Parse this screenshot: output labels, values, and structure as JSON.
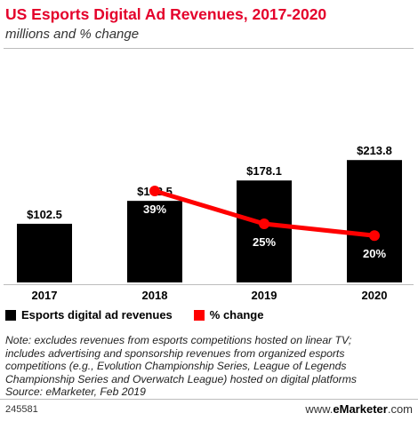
{
  "header": {
    "title": "US Esports Digital Ad Revenues, 2017-2020",
    "subtitle": "millions and % change"
  },
  "chart_data": {
    "type": "bar",
    "categories": [
      "2017",
      "2018",
      "2019",
      "2020"
    ],
    "series": [
      {
        "name": "Esports digital ad revenues",
        "kind": "bar",
        "values": [
          102.5,
          142.5,
          178.1,
          213.8
        ],
        "labels": [
          "$102.5",
          "$142.5",
          "$178.1",
          "$213.8"
        ],
        "color": "#000000"
      },
      {
        "name": "% change",
        "kind": "line",
        "values": [
          null,
          39,
          25,
          20
        ],
        "labels": [
          "",
          "39%",
          "25%",
          "20%"
        ],
        "color": "#ff0000"
      }
    ],
    "legend_position": "bottom-left",
    "grid": false
  },
  "legend": {
    "bar_label": "Esports digital ad revenues",
    "line_label": "% change",
    "bar_color": "#000000",
    "line_color": "#ff0000"
  },
  "note": "Note: excludes revenues from esports competitions hosted on linear TV;\nincludes advertising and sponsorship revenues from organized esports\ncompetitions (e.g., Evolution Championship Series, League of Legends\nChampionship Series and Overwatch League) hosted on digital platforms\nSource: eMarketer, Feb 2019",
  "footer": {
    "chart_id": "245581",
    "brand_prefix": "www.",
    "brand_name": "eMarketer",
    "brand_suffix": ".com"
  }
}
